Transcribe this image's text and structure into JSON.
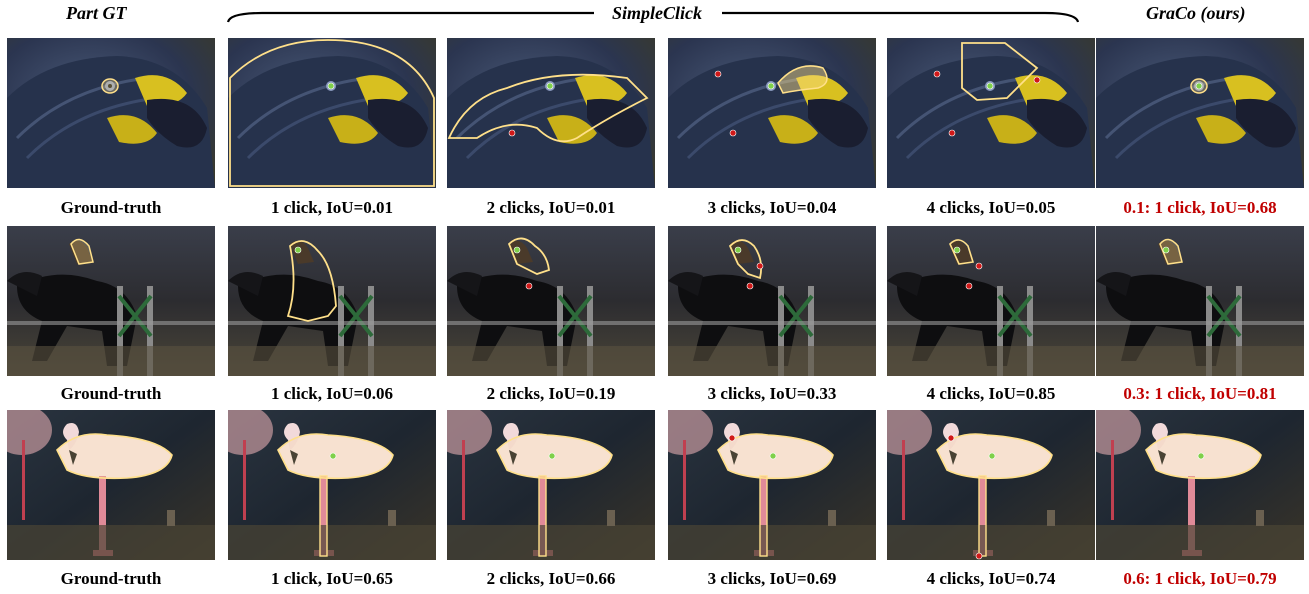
{
  "headers": {
    "part_gt": "Part GT",
    "simpleclick": "SimpleClick",
    "graco": "GraCo (ours)"
  },
  "rows": [
    {
      "subject": "parrot",
      "captions": [
        "Ground-truth",
        "1 click, IoU=0.01",
        "2 clicks, IoU=0.01",
        "3 clicks, IoU=0.04",
        "4 clicks, IoU=0.05",
        "0.1: 1 click, IoU=0.68"
      ]
    },
    {
      "subject": "horse-rider",
      "captions": [
        "Ground-truth",
        "1 click, IoU=0.06",
        "2 clicks, IoU=0.19",
        "3 clicks, IoU=0.33",
        "4 clicks, IoU=0.85",
        "0.3: 1 click, IoU=0.81"
      ]
    },
    {
      "subject": "flamingo",
      "captions": [
        "Ground-truth",
        "1 click, IoU=0.65",
        "2 clicks, IoU=0.66",
        "3 clicks, IoU=0.69",
        "4 clicks, IoU=0.74",
        "0.6: 1 click, IoU=0.79"
      ]
    }
  ],
  "colors": {
    "ours_caption": "#c00000",
    "mask_outline": "#ffe08a",
    "positive_click": "#7fd04a",
    "negative_click": "#d01818"
  }
}
